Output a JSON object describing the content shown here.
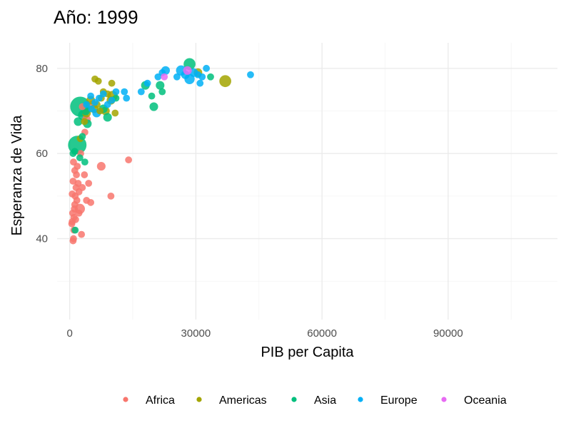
{
  "chart_data": {
    "type": "scatter",
    "title": "Año: 1999",
    "xlabel": "PIB per Capita",
    "ylabel": "Esperanza de Vida",
    "xlim": [
      -3000,
      116000
    ],
    "ylim": [
      21,
      86
    ],
    "x_ticks": [
      0,
      30000,
      60000,
      90000
    ],
    "x_tick_labels": [
      "0",
      "30000",
      "60000",
      "90000"
    ],
    "y_ticks": [
      40,
      60,
      80
    ],
    "y_tick_labels": [
      "40",
      "60",
      "80"
    ],
    "grid": true,
    "legend_position": "bottom",
    "colors": {
      "Africa": "#F8766D",
      "Americas": "#A3A500",
      "Asia": "#00BF7D",
      "Europe": "#00B0F6",
      "Oceania": "#E76BF3"
    },
    "series": [
      {
        "name": "Africa",
        "color": "#F8766D",
        "points": [
          {
            "x": 500,
            "y": 43.5,
            "s": 2
          },
          {
            "x": 600,
            "y": 44.0,
            "s": 2
          },
          {
            "x": 700,
            "y": 46.0,
            "s": 2
          },
          {
            "x": 800,
            "y": 39.5,
            "s": 2
          },
          {
            "x": 900,
            "y": 40.0,
            "s": 2
          },
          {
            "x": 1000,
            "y": 45.0,
            "s": 2
          },
          {
            "x": 1100,
            "y": 47.0,
            "s": 2
          },
          {
            "x": 1200,
            "y": 48.0,
            "s": 2
          },
          {
            "x": 1300,
            "y": 50.0,
            "s": 2
          },
          {
            "x": 1500,
            "y": 52.0,
            "s": 2
          },
          {
            "x": 1600,
            "y": 55.0,
            "s": 2
          },
          {
            "x": 1700,
            "y": 49.0,
            "s": 2
          },
          {
            "x": 1800,
            "y": 57.0,
            "s": 2
          },
          {
            "x": 2000,
            "y": 53.0,
            "s": 2
          },
          {
            "x": 2200,
            "y": 51.0,
            "s": 2
          },
          {
            "x": 2400,
            "y": 47.0,
            "s": 4
          },
          {
            "x": 900,
            "y": 58.0,
            "s": 2
          },
          {
            "x": 1200,
            "y": 56.0,
            "s": 2
          },
          {
            "x": 2600,
            "y": 60.0,
            "s": 2
          },
          {
            "x": 2800,
            "y": 41.0,
            "s": 2
          },
          {
            "x": 3000,
            "y": 52.0,
            "s": 2
          },
          {
            "x": 3500,
            "y": 55.0,
            "s": 2
          },
          {
            "x": 4000,
            "y": 49.0,
            "s": 2
          },
          {
            "x": 4500,
            "y": 53.0,
            "s": 2
          },
          {
            "x": 5000,
            "y": 48.5,
            "s": 2
          },
          {
            "x": 7500,
            "y": 57.0,
            "s": 3
          },
          {
            "x": 9800,
            "y": 50.0,
            "s": 2
          },
          {
            "x": 14000,
            "y": 58.5,
            "s": 2
          },
          {
            "x": 1400,
            "y": 44.5,
            "s": 2
          },
          {
            "x": 600,
            "y": 50.5,
            "s": 2
          },
          {
            "x": 800,
            "y": 53.5,
            "s": 2
          },
          {
            "x": 1000,
            "y": 42.0,
            "s": 2
          },
          {
            "x": 2200,
            "y": 46.0,
            "s": 2
          },
          {
            "x": 3000,
            "y": 71.0,
            "s": 2
          },
          {
            "x": 5500,
            "y": 71.5,
            "s": 3
          },
          {
            "x": 4000,
            "y": 68.0,
            "s": 3
          },
          {
            "x": 3600,
            "y": 65.0,
            "s": 2
          }
        ]
      },
      {
        "name": "Americas",
        "color": "#A3A500",
        "points": [
          {
            "x": 6000,
            "y": 77.5,
            "s": 2
          },
          {
            "x": 6800,
            "y": 77.0,
            "s": 2
          },
          {
            "x": 10000,
            "y": 76.5,
            "s": 2
          },
          {
            "x": 9000,
            "y": 74.0,
            "s": 2
          },
          {
            "x": 10200,
            "y": 73.5,
            "s": 4
          },
          {
            "x": 8000,
            "y": 74.5,
            "s": 2
          },
          {
            "x": 7500,
            "y": 73.0,
            "s": 2
          },
          {
            "x": 5000,
            "y": 72.5,
            "s": 3
          },
          {
            "x": 6500,
            "y": 71.5,
            "s": 2
          },
          {
            "x": 7200,
            "y": 70.0,
            "s": 2
          },
          {
            "x": 9800,
            "y": 72.5,
            "s": 3
          },
          {
            "x": 10800,
            "y": 69.5,
            "s": 2
          },
          {
            "x": 4000,
            "y": 69.5,
            "s": 3
          },
          {
            "x": 3500,
            "y": 67.5,
            "s": 2
          },
          {
            "x": 2500,
            "y": 63.5,
            "s": 2
          },
          {
            "x": 5800,
            "y": 70.5,
            "s": 3
          },
          {
            "x": 8500,
            "y": 70.0,
            "s": 3
          },
          {
            "x": 30500,
            "y": 79.0,
            "s": 3
          },
          {
            "x": 37000,
            "y": 77.0,
            "s": 5
          }
        ]
      },
      {
        "name": "Asia",
        "color": "#00BF7D",
        "points": [
          {
            "x": 2500,
            "y": 71.0,
            "s": 10
          },
          {
            "x": 1800,
            "y": 62.0,
            "s": 9
          },
          {
            "x": 2000,
            "y": 67.5,
            "s": 3
          },
          {
            "x": 3200,
            "y": 69.0,
            "s": 4
          },
          {
            "x": 3800,
            "y": 70.0,
            "s": 3
          },
          {
            "x": 4200,
            "y": 67.0,
            "s": 3
          },
          {
            "x": 3000,
            "y": 64.0,
            "s": 2
          },
          {
            "x": 1200,
            "y": 60.5,
            "s": 2
          },
          {
            "x": 800,
            "y": 60.0,
            "s": 2
          },
          {
            "x": 1300,
            "y": 42.0,
            "s": 2
          },
          {
            "x": 2400,
            "y": 59.0,
            "s": 2
          },
          {
            "x": 3600,
            "y": 58.0,
            "s": 2
          },
          {
            "x": 9000,
            "y": 68.5,
            "s": 3
          },
          {
            "x": 8000,
            "y": 70.5,
            "s": 3
          },
          {
            "x": 11000,
            "y": 73.0,
            "s": 2
          },
          {
            "x": 18000,
            "y": 76.0,
            "s": 3
          },
          {
            "x": 20000,
            "y": 71.0,
            "s": 3
          },
          {
            "x": 21500,
            "y": 76.0,
            "s": 3
          },
          {
            "x": 19500,
            "y": 73.5,
            "s": 2
          },
          {
            "x": 22000,
            "y": 74.5,
            "s": 2
          },
          {
            "x": 28500,
            "y": 81.0,
            "s": 5
          },
          {
            "x": 33500,
            "y": 78.0,
            "s": 2
          }
        ]
      },
      {
        "name": "Europe",
        "color": "#00B0F6",
        "points": [
          {
            "x": 4000,
            "y": 71.5,
            "s": 2
          },
          {
            "x": 5000,
            "y": 73.5,
            "s": 2
          },
          {
            "x": 5200,
            "y": 70.5,
            "s": 2
          },
          {
            "x": 6000,
            "y": 72.0,
            "s": 2
          },
          {
            "x": 6400,
            "y": 69.5,
            "s": 3
          },
          {
            "x": 7000,
            "y": 73.0,
            "s": 2
          },
          {
            "x": 8000,
            "y": 74.0,
            "s": 2
          },
          {
            "x": 9000,
            "y": 71.5,
            "s": 2
          },
          {
            "x": 10000,
            "y": 72.5,
            "s": 2
          },
          {
            "x": 11000,
            "y": 74.5,
            "s": 2
          },
          {
            "x": 13000,
            "y": 74.5,
            "s": 2
          },
          {
            "x": 13500,
            "y": 73.0,
            "s": 2
          },
          {
            "x": 17000,
            "y": 74.5,
            "s": 2
          },
          {
            "x": 18500,
            "y": 76.5,
            "s": 2
          },
          {
            "x": 21000,
            "y": 78.0,
            "s": 2
          },
          {
            "x": 22000,
            "y": 79.0,
            "s": 2
          },
          {
            "x": 22800,
            "y": 79.5,
            "s": 3
          },
          {
            "x": 25500,
            "y": 78.0,
            "s": 2
          },
          {
            "x": 26500,
            "y": 79.5,
            "s": 4
          },
          {
            "x": 27500,
            "y": 78.5,
            "s": 3
          },
          {
            "x": 28500,
            "y": 77.5,
            "s": 4
          },
          {
            "x": 29500,
            "y": 79.0,
            "s": 3
          },
          {
            "x": 30500,
            "y": 78.5,
            "s": 2
          },
          {
            "x": 31500,
            "y": 78.0,
            "s": 2
          },
          {
            "x": 32500,
            "y": 80.0,
            "s": 2
          },
          {
            "x": 43000,
            "y": 78.5,
            "s": 2
          },
          {
            "x": 31000,
            "y": 76.5,
            "s": 2
          }
        ]
      },
      {
        "name": "Oceania",
        "color": "#E76BF3",
        "points": [
          {
            "x": 22500,
            "y": 78.0,
            "s": 2
          },
          {
            "x": 28000,
            "y": 79.5,
            "s": 3
          }
        ]
      }
    ]
  }
}
